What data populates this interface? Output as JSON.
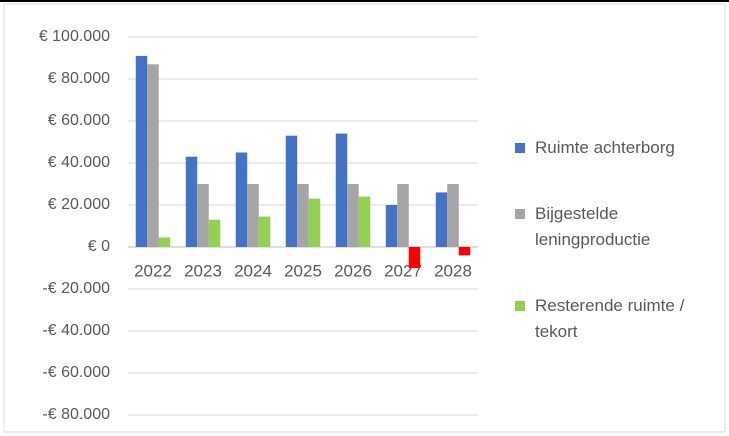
{
  "chart_data": {
    "type": "bar",
    "categories": [
      "2022",
      "2023",
      "2024",
      "2025",
      "2026",
      "2027",
      "2028"
    ],
    "series": [
      {
        "name": "Ruimte achterborg",
        "color": "#4472c4",
        "values": [
          91000,
          43000,
          45000,
          53000,
          54000,
          20000,
          26000
        ]
      },
      {
        "name": "Bijgestelde leningproductie",
        "color": "#a5a5a5",
        "values": [
          87000,
          30000,
          30000,
          30000,
          30000,
          30000,
          30000
        ]
      },
      {
        "name": "Resterende ruimte / tekort",
        "color": "#92d050",
        "negative_color": "#ff0000",
        "values": [
          4500,
          13000,
          14500,
          23000,
          24000,
          -10000,
          -4000
        ]
      }
    ],
    "ylim": [
      -80000,
      100000
    ],
    "yticks": [
      {
        "value": 100000,
        "label": "€ 100.000"
      },
      {
        "value": 80000,
        "label": "€ 80.000"
      },
      {
        "value": 60000,
        "label": "€ 60.000"
      },
      {
        "value": 40000,
        "label": "€ 40.000"
      },
      {
        "value": 20000,
        "label": "€ 20.000"
      },
      {
        "value": 0,
        "label": "€ 0"
      },
      {
        "value": -20000,
        "label": "-€ 20.000"
      },
      {
        "value": -40000,
        "label": "-€ 40.000"
      },
      {
        "value": -60000,
        "label": "-€ 60.000"
      },
      {
        "value": -80000,
        "label": "-€ 80.000"
      }
    ],
    "grid": true,
    "legend": "right"
  }
}
